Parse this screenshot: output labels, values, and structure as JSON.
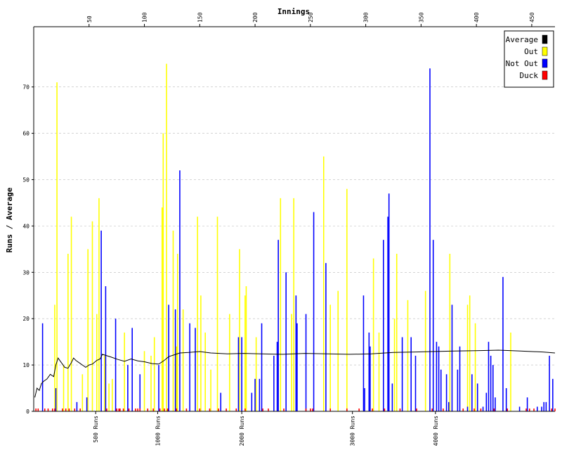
{
  "chart_data": {
    "type": "bar",
    "title": "",
    "xlabel": "Innings",
    "ylabel": "Runs / Average",
    "xlim": [
      0,
      471
    ],
    "ylim": [
      0,
      83
    ],
    "x_ticks": [
      50,
      100,
      150,
      200,
      250,
      300,
      350,
      400,
      450
    ],
    "y_ticks": [
      0,
      10,
      20,
      30,
      40,
      50,
      60,
      70
    ],
    "grid": true,
    "legend_position": "top-right",
    "colors": {
      "average": "#000000",
      "out": "#ffff00",
      "not_out": "#0000ff",
      "duck": "#ff0000"
    },
    "legend": {
      "average": "Average",
      "out": "Out",
      "not_out": "Not Out",
      "duck": "Duck"
    },
    "milestones": [
      {
        "label": "500 Runs",
        "innings": 56
      },
      {
        "label": "1000 Runs",
        "innings": 112
      },
      {
        "label": "2000 Runs",
        "innings": 188
      },
      {
        "label": "3000 Runs",
        "innings": 288
      },
      {
        "label": "4000 Runs",
        "innings": 363
      }
    ],
    "not_out_bars": [
      {
        "innings": 8,
        "runs": 19
      },
      {
        "innings": 20,
        "runs": 5
      },
      {
        "innings": 39,
        "runs": 2
      },
      {
        "innings": 48,
        "runs": 3
      },
      {
        "innings": 61,
        "runs": 39
      },
      {
        "innings": 65,
        "runs": 27
      },
      {
        "innings": 74,
        "runs": 20
      },
      {
        "innings": 85,
        "runs": 10
      },
      {
        "innings": 89,
        "runs": 18
      },
      {
        "innings": 96,
        "runs": 8
      },
      {
        "innings": 113,
        "runs": 10
      },
      {
        "innings": 122,
        "runs": 23
      },
      {
        "innings": 128,
        "runs": 22
      },
      {
        "innings": 132,
        "runs": 52
      },
      {
        "innings": 141,
        "runs": 19
      },
      {
        "innings": 146,
        "runs": 18
      },
      {
        "innings": 169,
        "runs": 4
      },
      {
        "innings": 185,
        "runs": 16
      },
      {
        "innings": 188,
        "runs": 16
      },
      {
        "innings": 197,
        "runs": 4
      },
      {
        "innings": 200,
        "runs": 7
      },
      {
        "innings": 204,
        "runs": 7
      },
      {
        "innings": 206,
        "runs": 19
      },
      {
        "innings": 217,
        "runs": 12
      },
      {
        "innings": 220,
        "runs": 15
      },
      {
        "innings": 221,
        "runs": 37
      },
      {
        "innings": 228,
        "runs": 30
      },
      {
        "innings": 237,
        "runs": 25
      },
      {
        "innings": 238,
        "runs": 19
      },
      {
        "innings": 246,
        "runs": 21
      },
      {
        "innings": 253,
        "runs": 43
      },
      {
        "innings": 264,
        "runs": 32
      },
      {
        "innings": 298,
        "runs": 25
      },
      {
        "innings": 299,
        "runs": 5
      },
      {
        "innings": 303,
        "runs": 17
      },
      {
        "innings": 304,
        "runs": 14
      },
      {
        "innings": 316,
        "runs": 37
      },
      {
        "innings": 320,
        "runs": 42
      },
      {
        "innings": 321,
        "runs": 47
      },
      {
        "innings": 324,
        "runs": 6
      },
      {
        "innings": 333,
        "runs": 16
      },
      {
        "innings": 341,
        "runs": 16
      },
      {
        "innings": 345,
        "runs": 12
      },
      {
        "innings": 358,
        "runs": 74
      },
      {
        "innings": 361,
        "runs": 37
      },
      {
        "innings": 364,
        "runs": 15
      },
      {
        "innings": 366,
        "runs": 14
      },
      {
        "innings": 368,
        "runs": 9
      },
      {
        "innings": 373,
        "runs": 8
      },
      {
        "innings": 375,
        "runs": 2
      },
      {
        "innings": 378,
        "runs": 23
      },
      {
        "innings": 383,
        "runs": 9
      },
      {
        "innings": 385,
        "runs": 14
      },
      {
        "innings": 392,
        "runs": 1
      },
      {
        "innings": 396,
        "runs": 8
      },
      {
        "innings": 401,
        "runs": 6
      },
      {
        "innings": 406,
        "runs": 1
      },
      {
        "innings": 409,
        "runs": 4
      },
      {
        "innings": 411,
        "runs": 15
      },
      {
        "innings": 413,
        "runs": 12
      },
      {
        "innings": 415,
        "runs": 10
      },
      {
        "innings": 417,
        "runs": 3
      },
      {
        "innings": 424,
        "runs": 29
      },
      {
        "innings": 427,
        "runs": 5
      },
      {
        "innings": 439,
        "runs": 1
      },
      {
        "innings": 446,
        "runs": 3
      },
      {
        "innings": 455,
        "runs": 1
      },
      {
        "innings": 459,
        "runs": 1
      },
      {
        "innings": 461,
        "runs": 2
      },
      {
        "innings": 463,
        "runs": 2
      },
      {
        "innings": 466,
        "runs": 12
      },
      {
        "innings": 469,
        "runs": 7
      }
    ],
    "out_bars": [
      {
        "innings": 19,
        "runs": 23
      },
      {
        "innings": 21,
        "runs": 71
      },
      {
        "innings": 27,
        "runs": 10
      },
      {
        "innings": 31,
        "runs": 34
      },
      {
        "innings": 34,
        "runs": 42
      },
      {
        "innings": 44,
        "runs": 8
      },
      {
        "innings": 49,
        "runs": 35
      },
      {
        "innings": 53,
        "runs": 41
      },
      {
        "innings": 57,
        "runs": 21
      },
      {
        "innings": 59,
        "runs": 46
      },
      {
        "innings": 64,
        "runs": 12
      },
      {
        "innings": 68,
        "runs": 6
      },
      {
        "innings": 71,
        "runs": 7
      },
      {
        "innings": 82,
        "runs": 17
      },
      {
        "innings": 100,
        "runs": 13
      },
      {
        "innings": 106,
        "runs": 12
      },
      {
        "innings": 109,
        "runs": 16
      },
      {
        "innings": 116,
        "runs": 44
      },
      {
        "innings": 117,
        "runs": 60
      },
      {
        "innings": 120,
        "runs": 75
      },
      {
        "innings": 126,
        "runs": 39
      },
      {
        "innings": 129,
        "runs": 14
      },
      {
        "innings": 130,
        "runs": 34
      },
      {
        "innings": 135,
        "runs": 22
      },
      {
        "innings": 148,
        "runs": 42
      },
      {
        "innings": 151,
        "runs": 25
      },
      {
        "innings": 155,
        "runs": 17
      },
      {
        "innings": 160,
        "runs": 9
      },
      {
        "innings": 166,
        "runs": 42
      },
      {
        "innings": 177,
        "runs": 21
      },
      {
        "innings": 186,
        "runs": 35
      },
      {
        "innings": 191,
        "runs": 25
      },
      {
        "innings": 192,
        "runs": 27
      },
      {
        "innings": 201,
        "runs": 16
      },
      {
        "innings": 223,
        "runs": 46
      },
      {
        "innings": 233,
        "runs": 21
      },
      {
        "innings": 235,
        "runs": 46
      },
      {
        "innings": 262,
        "runs": 55
      },
      {
        "innings": 268,
        "runs": 23
      },
      {
        "innings": 275,
        "runs": 26
      },
      {
        "innings": 283,
        "runs": 48
      },
      {
        "innings": 307,
        "runs": 33
      },
      {
        "innings": 312,
        "runs": 17
      },
      {
        "innings": 326,
        "runs": 20
      },
      {
        "innings": 328,
        "runs": 34
      },
      {
        "innings": 338,
        "runs": 24
      },
      {
        "innings": 354,
        "runs": 26
      },
      {
        "innings": 376,
        "runs": 34
      },
      {
        "innings": 392,
        "runs": 23
      },
      {
        "innings": 394,
        "runs": 25
      },
      {
        "innings": 399,
        "runs": 19
      },
      {
        "innings": 431,
        "runs": 17
      }
    ],
    "duck_innings": [
      2,
      4,
      10,
      13,
      17,
      19,
      26,
      29,
      32,
      37,
      42,
      66,
      75,
      77,
      78,
      81,
      86,
      92,
      94,
      96,
      103,
      108,
      114,
      118,
      121,
      129,
      138,
      150,
      159,
      167,
      174,
      183,
      191,
      207,
      212,
      226,
      246,
      250,
      252,
      268,
      283,
      294,
      306,
      317,
      331,
      346,
      360,
      370,
      388,
      398,
      404,
      416,
      428,
      445,
      448,
      452,
      468,
      471
    ],
    "average_series": [
      {
        "innings": 1,
        "avg": 3
      },
      {
        "innings": 3,
        "avg": 5
      },
      {
        "innings": 5,
        "avg": 4.5
      },
      {
        "innings": 7,
        "avg": 6
      },
      {
        "innings": 9,
        "avg": 6.5
      },
      {
        "innings": 12,
        "avg": 7
      },
      {
        "innings": 15,
        "avg": 8
      },
      {
        "innings": 18,
        "avg": 7.5
      },
      {
        "innings": 20,
        "avg": 10
      },
      {
        "innings": 22,
        "avg": 11.5
      },
      {
        "innings": 25,
        "avg": 10.5
      },
      {
        "innings": 28,
        "avg": 9.5
      },
      {
        "innings": 31,
        "avg": 9.3
      },
      {
        "innings": 34,
        "avg": 10.5
      },
      {
        "innings": 36,
        "avg": 11.5
      },
      {
        "innings": 38,
        "avg": 11
      },
      {
        "innings": 41,
        "avg": 10.5
      },
      {
        "innings": 44,
        "avg": 10
      },
      {
        "innings": 47,
        "avg": 9.5
      },
      {
        "innings": 50,
        "avg": 10
      },
      {
        "innings": 53,
        "avg": 10.2
      },
      {
        "innings": 57,
        "avg": 11
      },
      {
        "innings": 60,
        "avg": 11.3
      },
      {
        "innings": 62,
        "avg": 12.3
      },
      {
        "innings": 66,
        "avg": 12
      },
      {
        "innings": 70,
        "avg": 11.7
      },
      {
        "innings": 76,
        "avg": 11.2
      },
      {
        "innings": 82,
        "avg": 10.8
      },
      {
        "innings": 88,
        "avg": 11.3
      },
      {
        "innings": 94,
        "avg": 10.9
      },
      {
        "innings": 100,
        "avg": 10.7
      },
      {
        "innings": 107,
        "avg": 10.3
      },
      {
        "innings": 113,
        "avg": 10.2
      },
      {
        "innings": 118,
        "avg": 11
      },
      {
        "innings": 122,
        "avg": 11.8
      },
      {
        "innings": 127,
        "avg": 12.2
      },
      {
        "innings": 132,
        "avg": 12.6
      },
      {
        "innings": 140,
        "avg": 12.7
      },
      {
        "innings": 150,
        "avg": 12.9
      },
      {
        "innings": 160,
        "avg": 12.6
      },
      {
        "innings": 175,
        "avg": 12.4
      },
      {
        "innings": 190,
        "avg": 12.5
      },
      {
        "innings": 205,
        "avg": 12.4
      },
      {
        "innings": 225,
        "avg": 12.3
      },
      {
        "innings": 245,
        "avg": 12.5
      },
      {
        "innings": 265,
        "avg": 12.4
      },
      {
        "innings": 285,
        "avg": 12.3
      },
      {
        "innings": 305,
        "avg": 12.4
      },
      {
        "innings": 325,
        "avg": 12.7
      },
      {
        "innings": 345,
        "avg": 12.8
      },
      {
        "innings": 360,
        "avg": 12.9
      },
      {
        "innings": 380,
        "avg": 13
      },
      {
        "innings": 400,
        "avg": 13.1
      },
      {
        "innings": 420,
        "avg": 13.2
      },
      {
        "innings": 440,
        "avg": 13
      },
      {
        "innings": 460,
        "avg": 12.8
      },
      {
        "innings": 471,
        "avg": 12.6
      }
    ]
  }
}
